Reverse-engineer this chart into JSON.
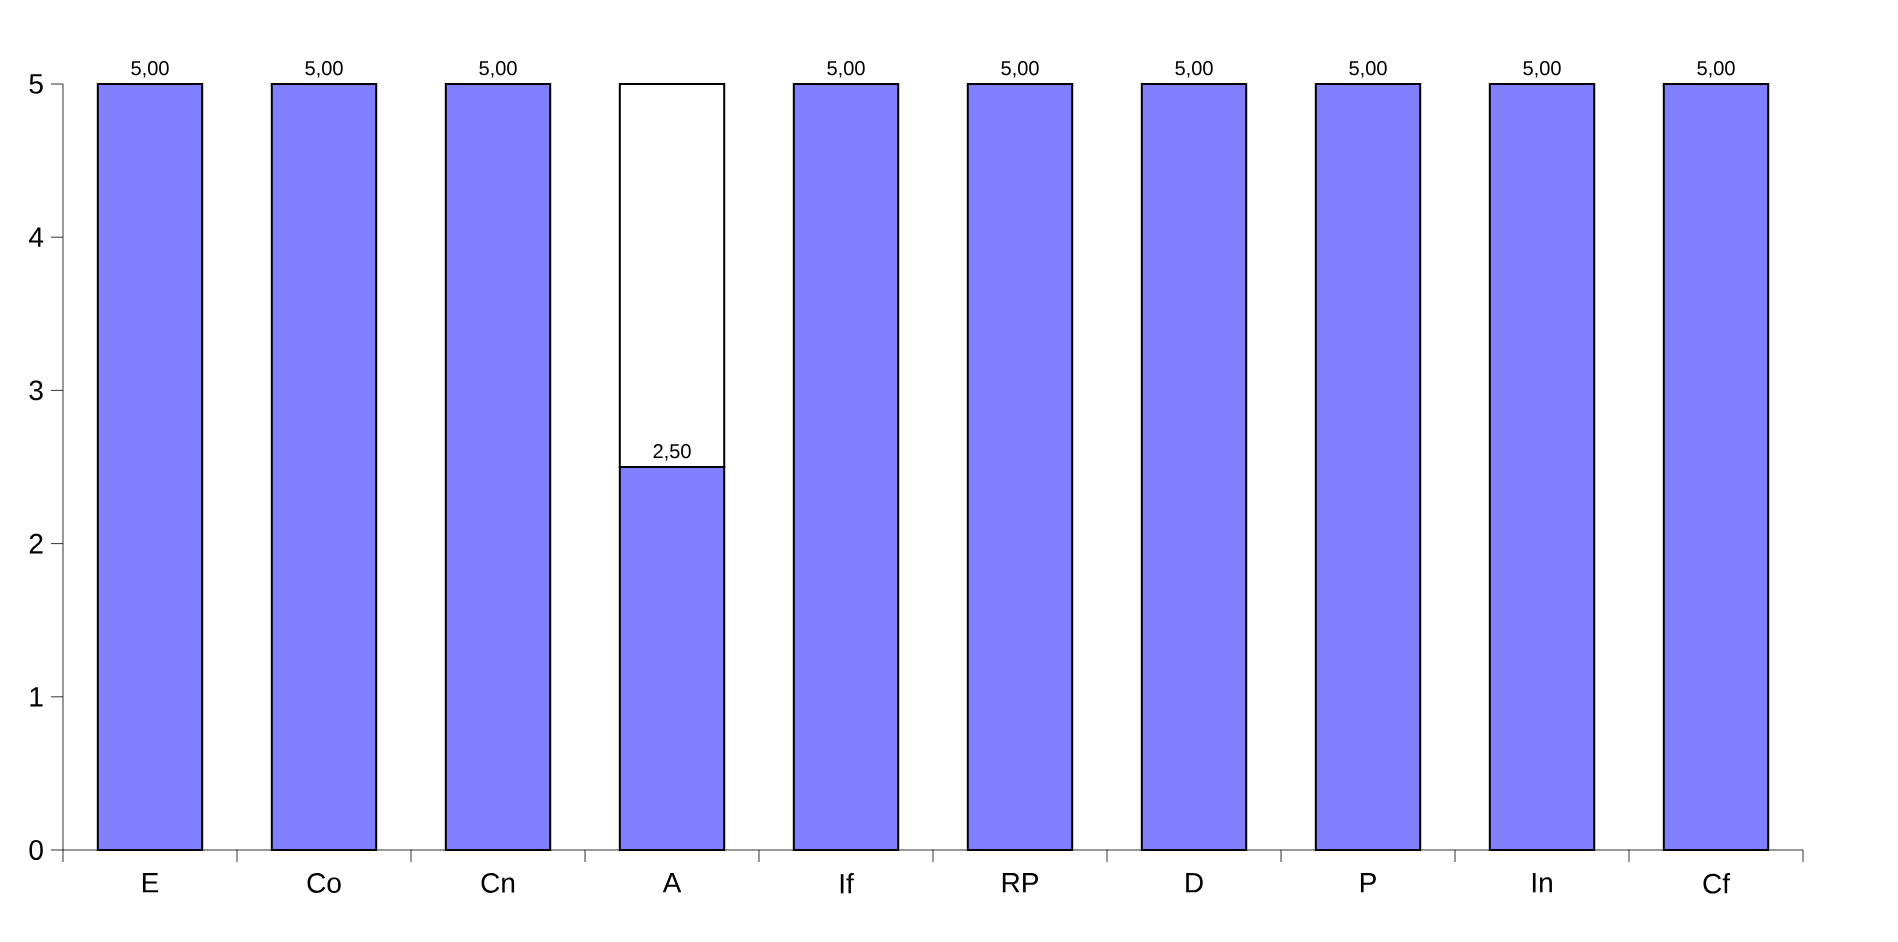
{
  "chart_data": {
    "type": "bar",
    "stacked": true,
    "categories": [
      "E",
      "Co",
      "Cn",
      "A",
      "If",
      "RP",
      "D",
      "P",
      "In",
      "Cf"
    ],
    "series": [
      {
        "color": "#8080ff",
        "values": [
          5,
          5,
          5,
          2.5,
          5,
          5,
          5,
          5,
          5,
          5
        ],
        "value_labels": [
          "5,00",
          "5,00",
          "5,00",
          "2,50",
          "5,00",
          "5,00",
          "5,00",
          "5,00",
          "5,00",
          "5,00"
        ]
      },
      {
        "color": "#ffffff",
        "values": [
          null,
          null,
          null,
          2.5,
          null,
          null,
          null,
          null,
          null,
          null
        ]
      }
    ],
    "ylim": [
      0,
      5
    ],
    "yticks": [
      0,
      1,
      2,
      3,
      4,
      5
    ],
    "grid": false
  }
}
